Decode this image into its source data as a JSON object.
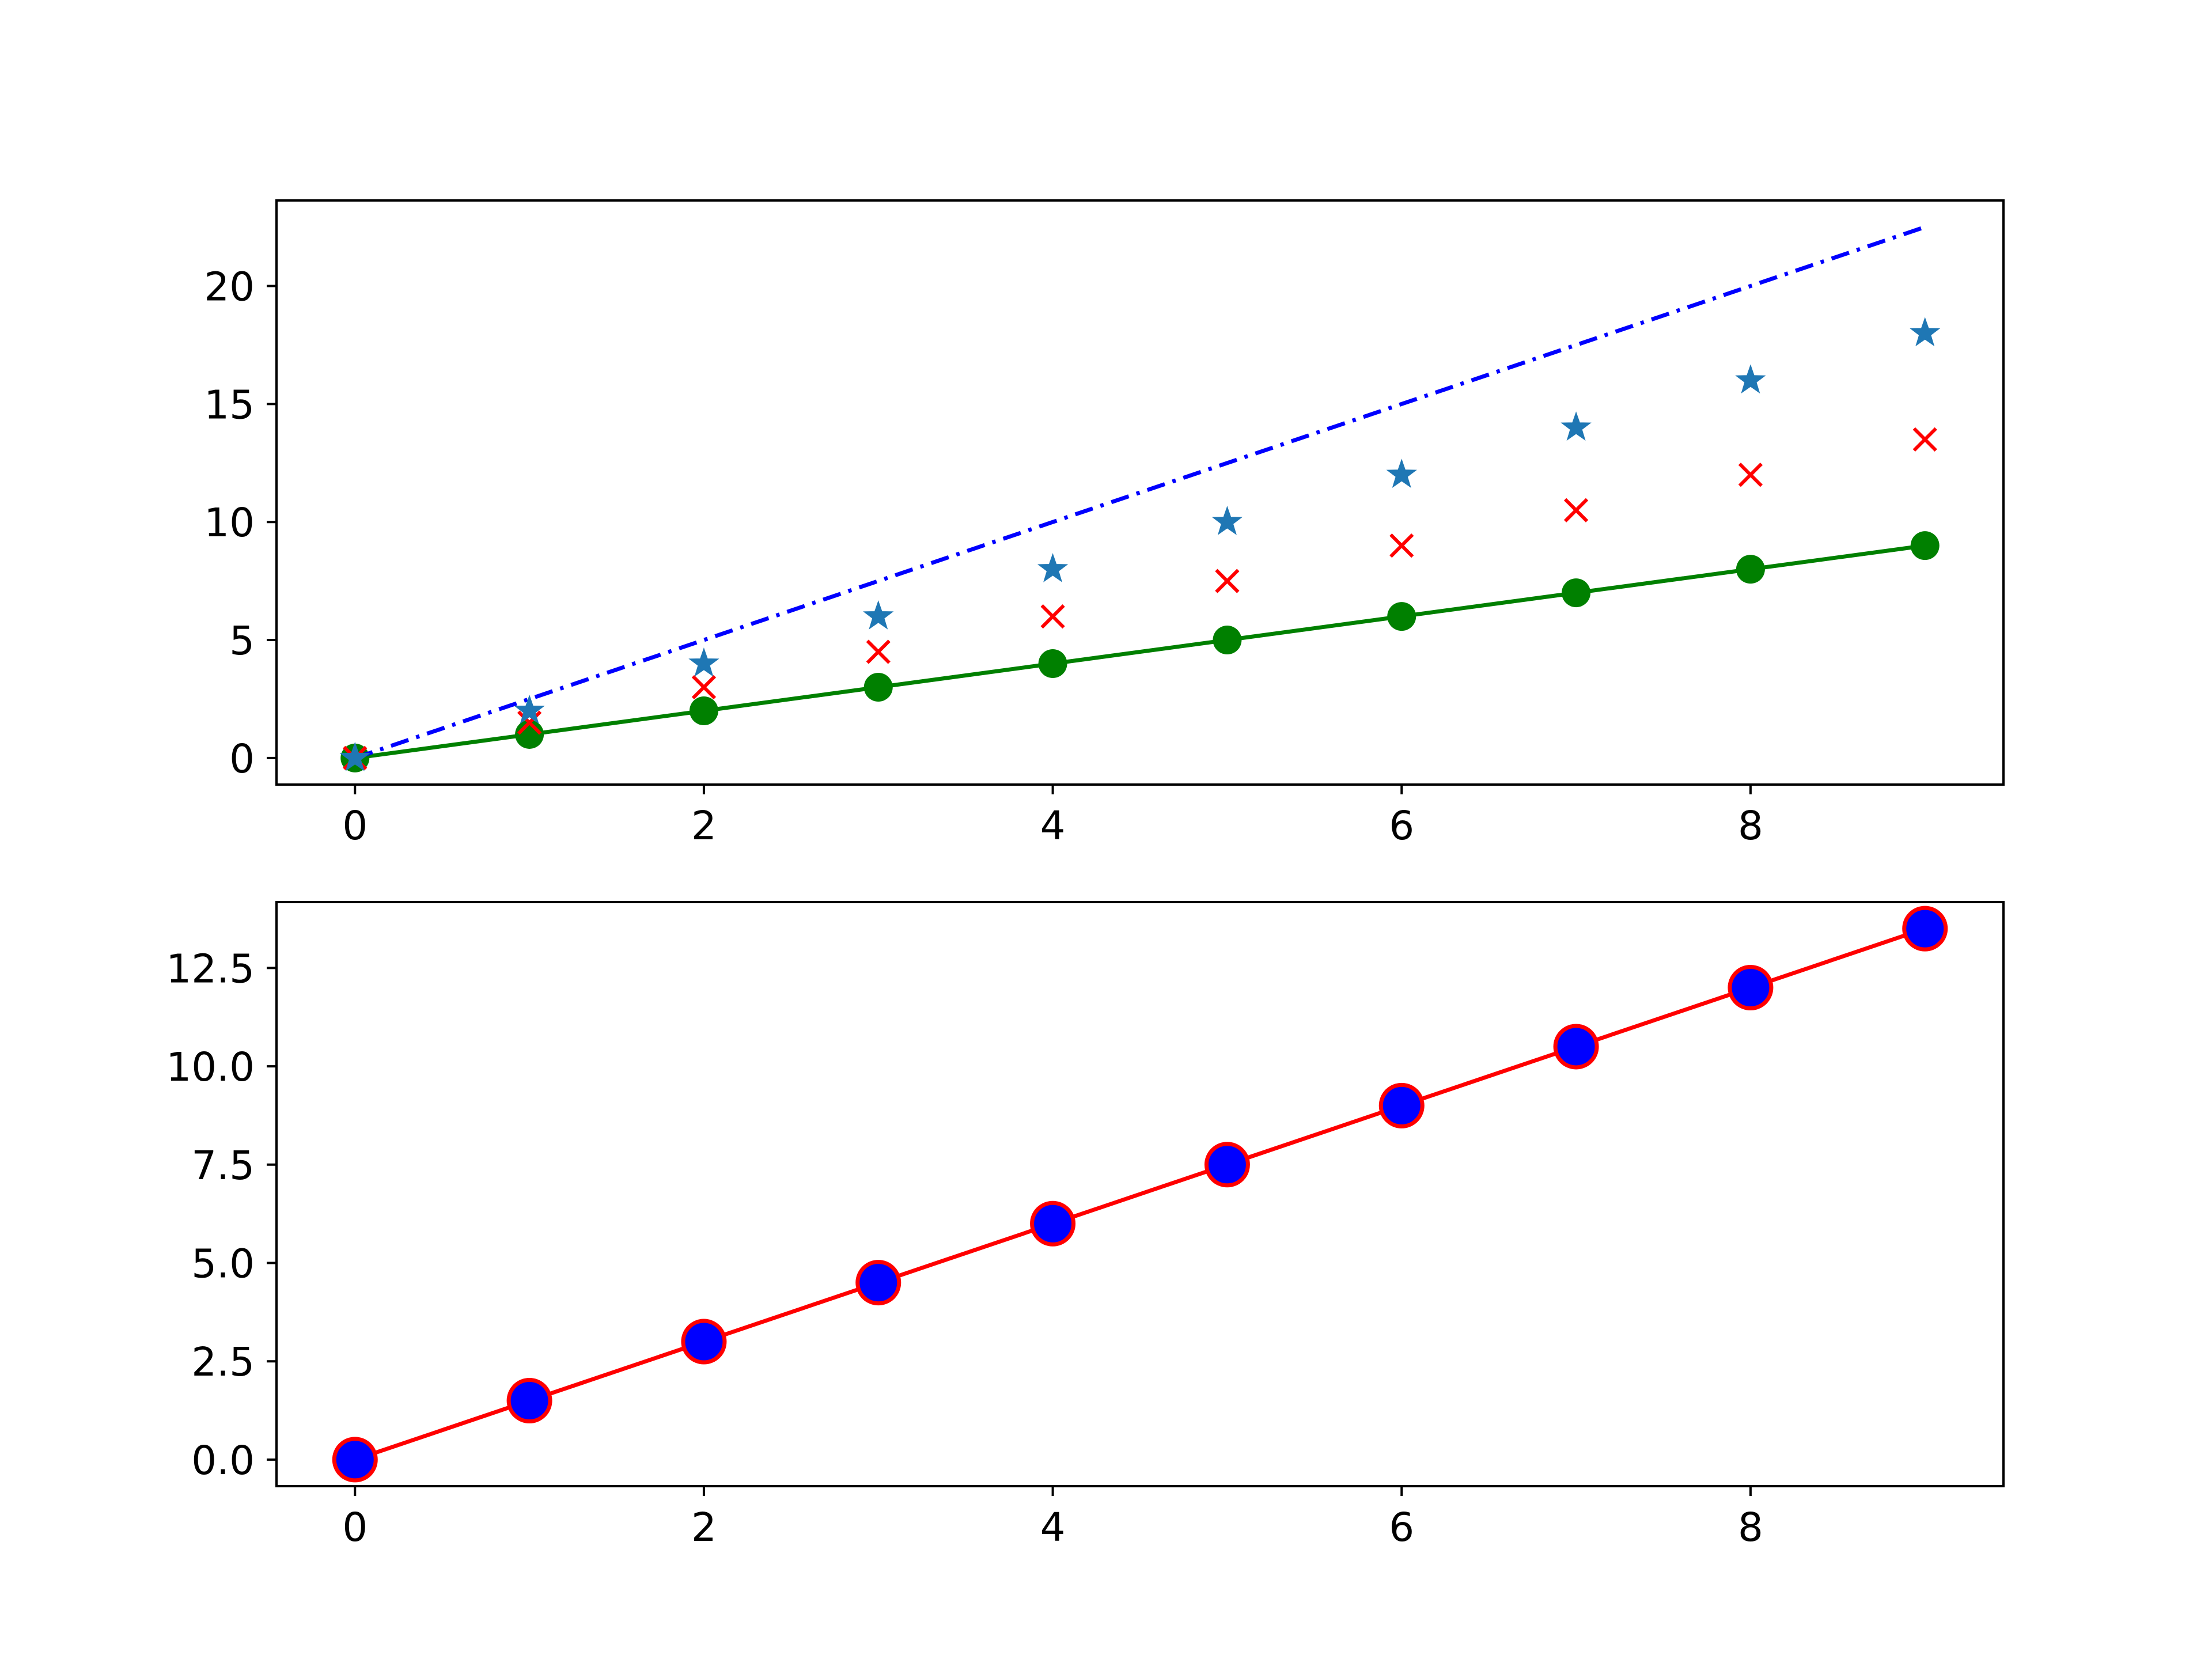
{
  "chart_data": [
    {
      "type": "line",
      "title": "",
      "xlabel": "",
      "ylabel": "",
      "xlim": [
        -0.45,
        9.45
      ],
      "ylim": [
        -1.125,
        23.625
      ],
      "x_ticks": [
        0,
        2,
        4,
        6,
        8
      ],
      "y_ticks": [
        0,
        5,
        10,
        15,
        20
      ],
      "x_tick_labels": [
        "0",
        "2",
        "4",
        "6",
        "8"
      ],
      "y_tick_labels": [
        "0",
        "5",
        "10",
        "15",
        "20"
      ],
      "grid": false,
      "legend": "none",
      "x": [
        0,
        1,
        2,
        3,
        4,
        5,
        6,
        7,
        8,
        9
      ],
      "series": [
        {
          "values": [
            0,
            1,
            2,
            3,
            4,
            5,
            6,
            7,
            8,
            9
          ],
          "color": "#008000",
          "linestyle": "solid",
          "marker": "circle"
        },
        {
          "values": [
            0,
            2.5,
            5,
            7.5,
            10,
            12.5,
            15,
            17.5,
            20,
            22.5
          ],
          "color": "#0000ff",
          "linestyle": "dash-dot",
          "marker": "none"
        },
        {
          "values": [
            0,
            1.5,
            3,
            4.5,
            6,
            7.5,
            9,
            10.5,
            12,
            13.5
          ],
          "color": "#ff0000",
          "linestyle": "none",
          "marker": "x"
        },
        {
          "values": [
            0,
            2,
            4,
            6,
            8,
            10,
            12,
            14,
            16,
            18
          ],
          "color": "#1f77b4",
          "linestyle": "none",
          "marker": "star"
        }
      ]
    },
    {
      "type": "line",
      "title": "",
      "xlabel": "",
      "ylabel": "",
      "xlim": [
        -0.45,
        9.45
      ],
      "ylim": [
        -0.675,
        14.175
      ],
      "x_ticks": [
        0,
        2,
        4,
        6,
        8
      ],
      "y_ticks": [
        0,
        2.5,
        5,
        7.5,
        10,
        12.5
      ],
      "x_tick_labels": [
        "0",
        "2",
        "4",
        "6",
        "8"
      ],
      "y_tick_labels": [
        "0.0",
        "2.5",
        "5.0",
        "7.5",
        "10.0",
        "12.5"
      ],
      "grid": false,
      "legend": "none",
      "x": [
        0,
        1,
        2,
        3,
        4,
        5,
        6,
        7,
        8,
        9
      ],
      "series": [
        {
          "values": [
            0,
            1.5,
            3,
            4.5,
            6,
            7.5,
            9,
            10.5,
            12,
            13.5
          ],
          "color": "#ff0000",
          "marker_face_color": "#0000ff",
          "marker_edge_color": "#ff0000",
          "linestyle": "solid",
          "marker": "circle"
        }
      ]
    }
  ]
}
